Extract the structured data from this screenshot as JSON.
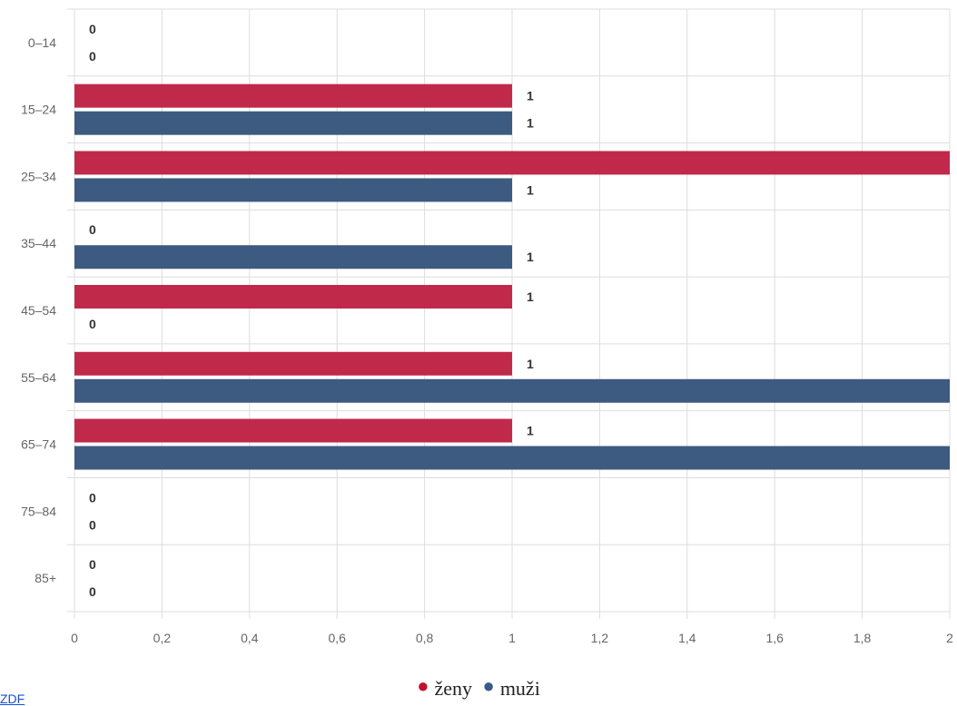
{
  "chart_data": {
    "type": "bar",
    "orientation": "horizontal",
    "categories": [
      "0–14",
      "15–24",
      "25–34",
      "35–44",
      "45–54",
      "55–64",
      "65–74",
      "75–84",
      "85+"
    ],
    "series": [
      {
        "name": "ženy",
        "color": "#c0294a",
        "values": [
          0,
          1,
          2,
          0,
          1,
          1,
          1,
          0,
          0
        ]
      },
      {
        "name": "muži",
        "color": "#3d5a80",
        "values": [
          0,
          1,
          1,
          1,
          0,
          2,
          2,
          0,
          0
        ]
      }
    ],
    "xlim": [
      0,
      2
    ],
    "x_ticks": [
      "0",
      "0,2",
      "0,4",
      "0,6",
      "0,8",
      "1",
      "1,2",
      "1,4",
      "1,6",
      "1,8",
      "2"
    ],
    "grid": true,
    "legend_position": "bottom"
  },
  "legend": {
    "female_label": "ženy",
    "male_label": "muži"
  },
  "source": {
    "link_text": "ZDF"
  }
}
